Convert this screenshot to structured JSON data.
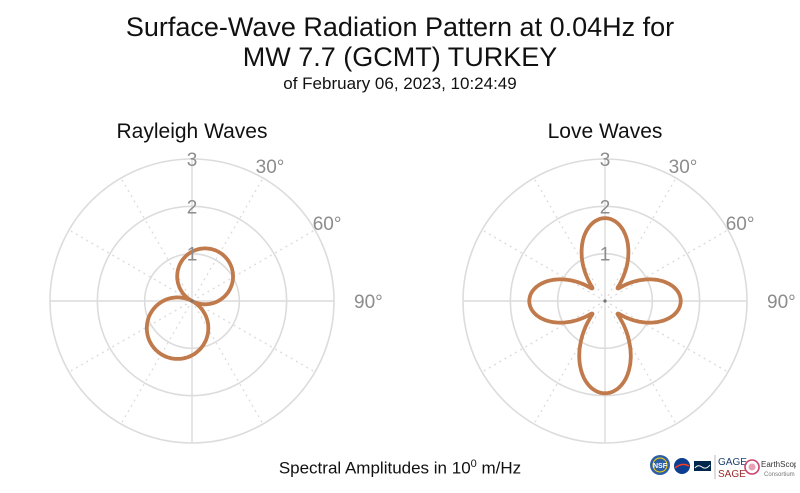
{
  "header": {
    "title_line1": "Surface-Wave Radiation Pattern at 0.04Hz for",
    "title_line2": "MW 7.7 (GCMT) TURKEY",
    "subtitle": "of February 06, 2023, 10:24:49"
  },
  "footer": {
    "units_prefix": "Spectral Amplitudes in 10",
    "units_exponent": "0",
    "units_suffix": " m/Hz"
  },
  "logos": {
    "nsf": "NSF",
    "gage": "GAGE",
    "sage": "SAGE",
    "earthscope": "EarthScope",
    "consortium": "Consortium"
  },
  "colors": {
    "pattern": "#c07a4b",
    "grid": "#dcdcdc",
    "tick_text": "#8c8c8c"
  },
  "chart_data": [
    {
      "type": "polar",
      "title": "Rayleigh Waves",
      "radial_ticks": [
        1,
        2,
        3
      ],
      "rlim": [
        0,
        3
      ],
      "angle_ticks": [
        "30°",
        "60°",
        "90°"
      ],
      "angle_tick_values": [
        30,
        60,
        90
      ],
      "grid": true,
      "pattern": "two-lobe",
      "lobes": [
        {
          "azimuth_deg": 28,
          "amplitude": 1.18
        },
        {
          "azimuth_deg": 242,
          "amplitude": 1.3
        }
      ]
    },
    {
      "type": "polar",
      "title": "Love Waves",
      "radial_ticks": [
        1,
        2,
        3
      ],
      "rlim": [
        0,
        3
      ],
      "angle_ticks": [
        "30°",
        "60°",
        "90°"
      ],
      "angle_tick_values": [
        30,
        60,
        90
      ],
      "grid": true,
      "pattern": "four-lobe",
      "lobes": [
        {
          "azimuth_deg": 0,
          "amplitude": 1.75
        },
        {
          "azimuth_deg": 87,
          "amplitude": 1.6
        },
        {
          "azimuth_deg": 180,
          "amplitude": 1.95
        },
        {
          "azimuth_deg": 270,
          "amplitude": 1.6
        }
      ]
    }
  ]
}
